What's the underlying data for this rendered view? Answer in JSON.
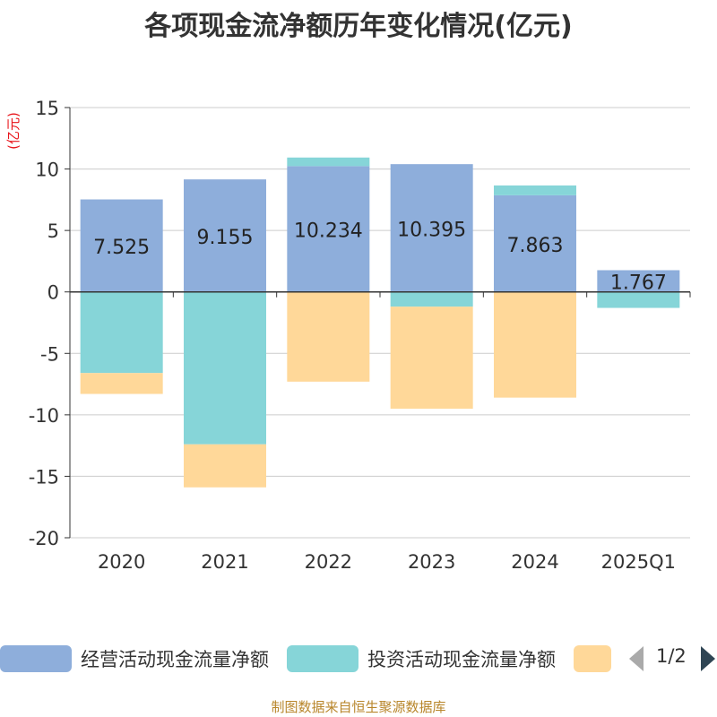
{
  "chart_data": {
    "type": "bar",
    "stacked": true,
    "title": "各项现金流净额历年变化情况(亿元)",
    "ylabel": "(亿元)",
    "ylim": [
      -20,
      15
    ],
    "yticks": [
      15,
      10,
      5,
      0,
      -5,
      -10,
      -15,
      -20
    ],
    "categories": [
      "2020",
      "2021",
      "2022",
      "2023",
      "2024",
      "2025Q1"
    ],
    "series": [
      {
        "name": "经营活动现金流量净额",
        "color": "#8eaedb",
        "values": [
          7.525,
          9.155,
          10.234,
          10.395,
          7.863,
          1.767
        ],
        "labels": [
          "7.525",
          "9.155",
          "10.234",
          "10.395",
          "7.863",
          "1.767"
        ]
      },
      {
        "name": "投资活动现金流量净额",
        "color": "#86d5d8",
        "values": [
          -6.6,
          -12.4,
          0.7,
          -1.2,
          0.8,
          -1.3
        ]
      },
      {
        "name": "",
        "color": "#ffd899",
        "values": [
          -1.7,
          -3.5,
          -7.3,
          -8.3,
          -8.6,
          0
        ]
      }
    ],
    "grid": true,
    "legend_position": "bottom"
  },
  "legend_pager": {
    "text": "1/2"
  },
  "footer": {
    "source": "制图数据来自恒生聚源数据库"
  }
}
